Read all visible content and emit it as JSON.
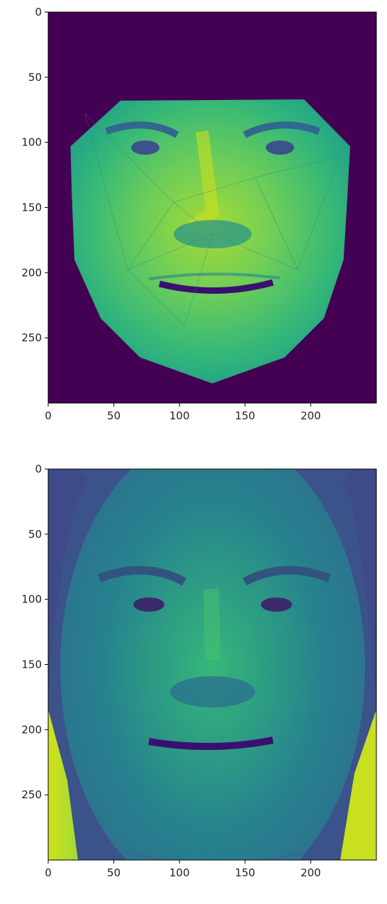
{
  "chart_data": [
    {
      "type": "heatmap",
      "image_description": "face warped into triangulated mesh on dark background",
      "colormap": "viridis",
      "background_value": 0,
      "xlim": [
        0,
        250
      ],
      "ylim": [
        300,
        0
      ],
      "x_ticks": [
        0,
        50,
        100,
        150,
        200
      ],
      "y_ticks": [
        0,
        50,
        100,
        150,
        200,
        250
      ],
      "x_tick_labels": [
        "0",
        "50",
        "100",
        "150",
        "200"
      ],
      "y_tick_labels": [
        "0",
        "50",
        "100",
        "150",
        "200",
        "250"
      ],
      "face_outline": [
        [
          55,
          68
        ],
        [
          195,
          67
        ],
        [
          230,
          103
        ],
        [
          228,
          140
        ],
        [
          225,
          190
        ],
        [
          210,
          235
        ],
        [
          180,
          265
        ],
        [
          125,
          285
        ],
        [
          70,
          265
        ],
        [
          40,
          235
        ],
        [
          20,
          190
        ],
        [
          18,
          140
        ],
        [
          17,
          103
        ]
      ]
    },
    {
      "type": "heatmap",
      "image_description": "original face photograph",
      "colormap": "viridis",
      "xlim": [
        0,
        250
      ],
      "ylim": [
        300,
        0
      ],
      "x_ticks": [
        0,
        50,
        100,
        150,
        200
      ],
      "y_ticks": [
        0,
        50,
        100,
        150,
        200,
        250
      ],
      "x_tick_labels": [
        "0",
        "50",
        "100",
        "150",
        "200"
      ],
      "y_tick_labels": [
        "0",
        "50",
        "100",
        "150",
        "200",
        "250"
      ]
    }
  ]
}
